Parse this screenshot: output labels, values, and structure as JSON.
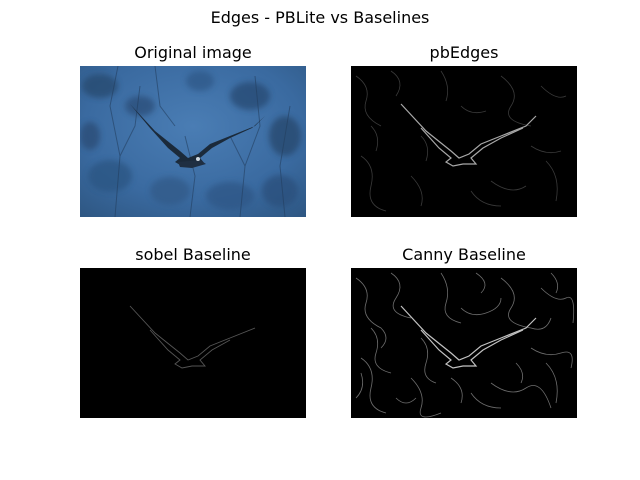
{
  "figure": {
    "suptitle": "Edges - PBLite vs Baselines"
  },
  "panels": [
    {
      "key": "original",
      "title": "Original image",
      "bg": "#3a6a9c"
    },
    {
      "key": "pb",
      "title": "pbEdges",
      "bg": "#000000"
    },
    {
      "key": "sobel",
      "title": "sobel Baseline",
      "bg": "#000000"
    },
    {
      "key": "canny",
      "title": "Canny Baseline",
      "bg": "#000000"
    }
  ]
}
